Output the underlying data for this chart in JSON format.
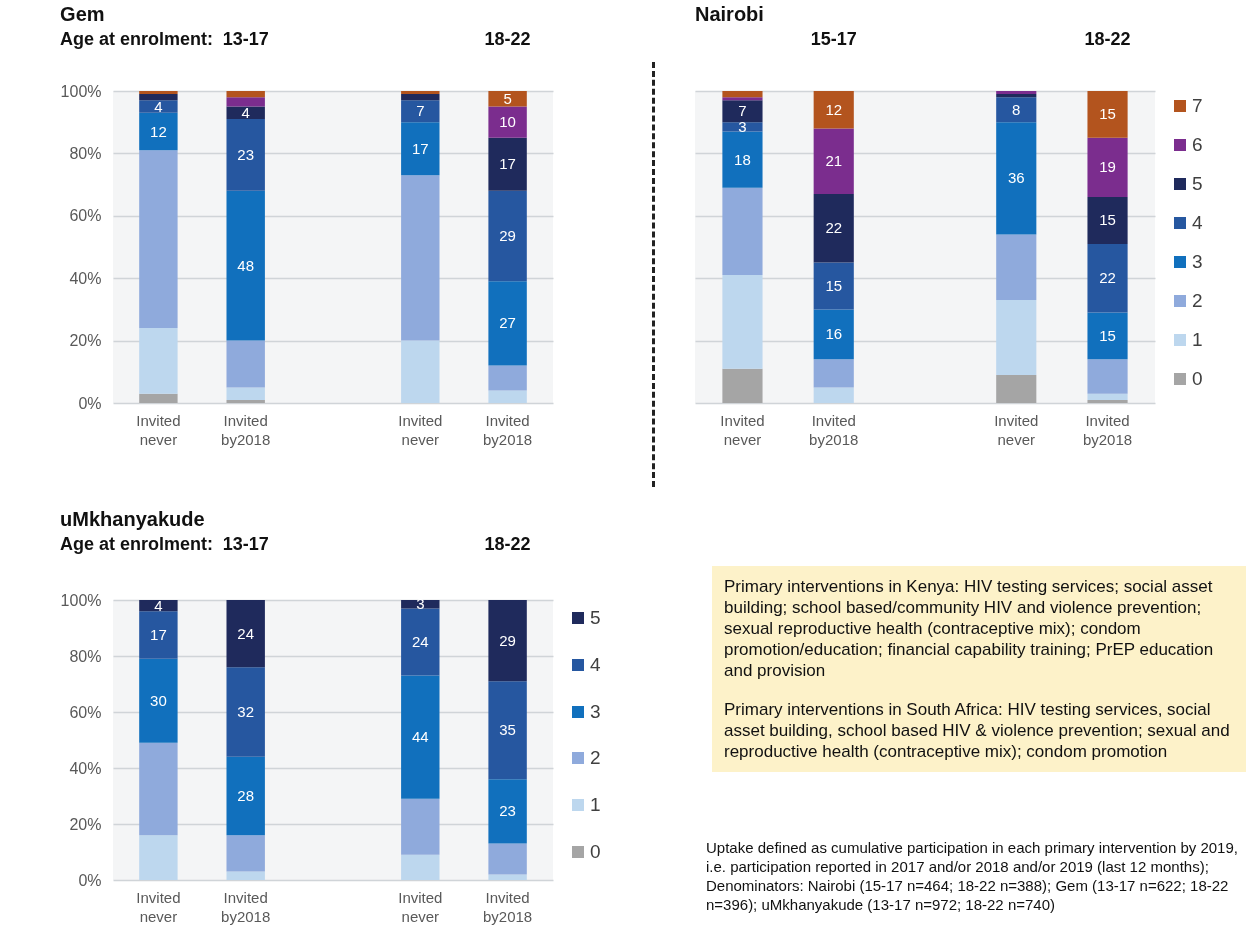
{
  "chart_data": [
    {
      "type": "bar",
      "title": "Gem",
      "subtitle": "Age at enrolment:",
      "annotations": [
        "13-17",
        "18-22"
      ],
      "stacked": true,
      "grid": "y",
      "legend": false,
      "categories": [
        "Invited never",
        "Invited by2018",
        null,
        "Invited never",
        "Invited by2018"
      ],
      "ylim": [
        0,
        100
      ],
      "yticks": [
        {
          "value": 0,
          "label": "0%"
        },
        {
          "value": 20,
          "label": "20%"
        },
        {
          "value": 40,
          "label": "40%"
        },
        {
          "value": 60,
          "label": "60%"
        },
        {
          "value": 80,
          "label": "80%"
        },
        {
          "value": 100,
          "label": "100%"
        }
      ],
      "series": [
        {
          "color": "#a5a5a5",
          "values": [
            3,
            1,
            null,
            0,
            0
          ]
        },
        {
          "color": "#bdd7ee",
          "values": [
            21,
            4,
            null,
            20,
            4
          ]
        },
        {
          "color": "#8faadc",
          "values": [
            57,
            15,
            null,
            53,
            8
          ]
        },
        {
          "color": "#1170bd",
          "values": [
            12,
            48,
            null,
            17,
            27
          ],
          "value_labels": [
            "12",
            "48",
            null,
            "17",
            "27"
          ]
        },
        {
          "color": "#2657a0",
          "values": [
            4,
            23,
            null,
            7,
            29
          ],
          "value_labels": [
            "4",
            "23",
            null,
            "7",
            "29"
          ]
        },
        {
          "color": "#1f2a5c",
          "values": [
            2,
            4,
            null,
            2,
            17
          ],
          "value_labels": [
            null,
            "4",
            null,
            null,
            "17"
          ]
        },
        {
          "color": "#7b2d8e",
          "values": [
            0,
            3,
            null,
            0,
            10
          ],
          "value_labels": [
            null,
            null,
            null,
            null,
            "10"
          ]
        },
        {
          "color": "#b3541e",
          "values": [
            1,
            2,
            null,
            1,
            5
          ],
          "value_labels": [
            null,
            null,
            null,
            null,
            "5"
          ]
        }
      ]
    },
    {
      "type": "bar",
      "title": "Nairobi",
      "annotations": [
        "15-17",
        "18-22"
      ],
      "stacked": true,
      "grid": "y",
      "legend": "right",
      "tick_labels": "x",
      "categories": [
        "Invited never",
        "Invited by2018",
        null,
        "Invited never",
        "Invited by2018"
      ],
      "ylim": [
        0,
        100
      ],
      "series": [
        {
          "name": "0",
          "color": "#a5a5a5",
          "values": [
            11,
            0,
            null,
            9,
            1
          ]
        },
        {
          "name": "1",
          "color": "#bdd7ee",
          "values": [
            30,
            5,
            null,
            24,
            2
          ]
        },
        {
          "name": "2",
          "color": "#8faadc",
          "values": [
            28,
            9,
            null,
            21,
            11
          ]
        },
        {
          "name": "3",
          "color": "#1170bd",
          "values": [
            18,
            16,
            null,
            36,
            15
          ],
          "value_labels": [
            "18",
            "16",
            null,
            "36",
            "15"
          ]
        },
        {
          "name": "4",
          "color": "#2657a0",
          "values": [
            3,
            15,
            null,
            8,
            22
          ],
          "value_labels": [
            "3",
            "15",
            null,
            "8",
            "22"
          ]
        },
        {
          "name": "5",
          "color": "#1f2a5c",
          "values": [
            7,
            22,
            null,
            1,
            15
          ],
          "value_labels": [
            "7",
            "22",
            null,
            null,
            "15"
          ]
        },
        {
          "name": "6",
          "color": "#7b2d8e",
          "values": [
            1,
            21,
            null,
            1,
            19
          ],
          "value_labels": [
            null,
            "21",
            null,
            null,
            "19"
          ]
        },
        {
          "name": "7",
          "color": "#b3541e",
          "values": [
            2,
            12,
            null,
            0,
            15
          ],
          "value_labels": [
            null,
            "12",
            null,
            null,
            "15"
          ]
        }
      ]
    },
    {
      "type": "bar",
      "title": "uMkhanyakude",
      "subtitle": "Age at enrolment:",
      "annotations": [
        "13-17",
        "18-22"
      ],
      "stacked": true,
      "grid": "y",
      "legend": "right",
      "categories": [
        "Invited never",
        "Invited by2018",
        null,
        "Invited never",
        "Invited by2018"
      ],
      "ylim": [
        0,
        100
      ],
      "yticks": [
        {
          "value": 0,
          "label": "0%"
        },
        {
          "value": 20,
          "label": "20%"
        },
        {
          "value": 40,
          "label": "40%"
        },
        {
          "value": 60,
          "label": "60%"
        },
        {
          "value": 80,
          "label": "80%"
        },
        {
          "value": 100,
          "label": "100%"
        }
      ],
      "series": [
        {
          "name": "0",
          "color": "#a5a5a5",
          "values": [
            0,
            0,
            null,
            0,
            0
          ]
        },
        {
          "name": "1",
          "color": "#bdd7ee",
          "values": [
            16,
            3,
            null,
            9,
            2
          ]
        },
        {
          "name": "2",
          "color": "#8faadc",
          "values": [
            33,
            13,
            null,
            20,
            11
          ]
        },
        {
          "name": "3",
          "color": "#1170bd",
          "values": [
            30,
            28,
            null,
            44,
            23
          ],
          "value_labels": [
            "30",
            "28",
            null,
            "44",
            "23"
          ]
        },
        {
          "name": "4",
          "color": "#2657a0",
          "values": [
            17,
            32,
            null,
            24,
            35
          ],
          "value_labels": [
            "17",
            "32",
            null,
            "24",
            "35"
          ]
        },
        {
          "name": "5",
          "color": "#1f2a5c",
          "values": [
            4,
            24,
            null,
            3,
            29
          ],
          "value_labels": [
            "4",
            "24",
            null,
            "3",
            "29"
          ]
        }
      ]
    },
    {
      "type": "other",
      "annotations": [
        "Primary interventions in Kenya: HIV testing services; social asset building; school based/community HIV and violence prevention; sexual reproductive health (contraceptive mix); condom promotion/education; financial capability training; PrEP education and provision",
        "Primary interventions in South Africa: HIV testing services, social asset building, school based HIV & violence prevention; sexual and reproductive health (contraceptive mix); condom promotion",
        "Uptake defined as cumulative participation in each primary intervention by 2019, i.e. participation reported in 2017 and/or 2018 and/or 2019 (last 12 months); Denominators: Nairobi (15-17 n=464; 18-22 n=388); Gem (13-17 n=622; 18-22 n=396); uMkhanyakude (13-17 n=972; 18-22 n=740)"
      ]
    }
  ]
}
